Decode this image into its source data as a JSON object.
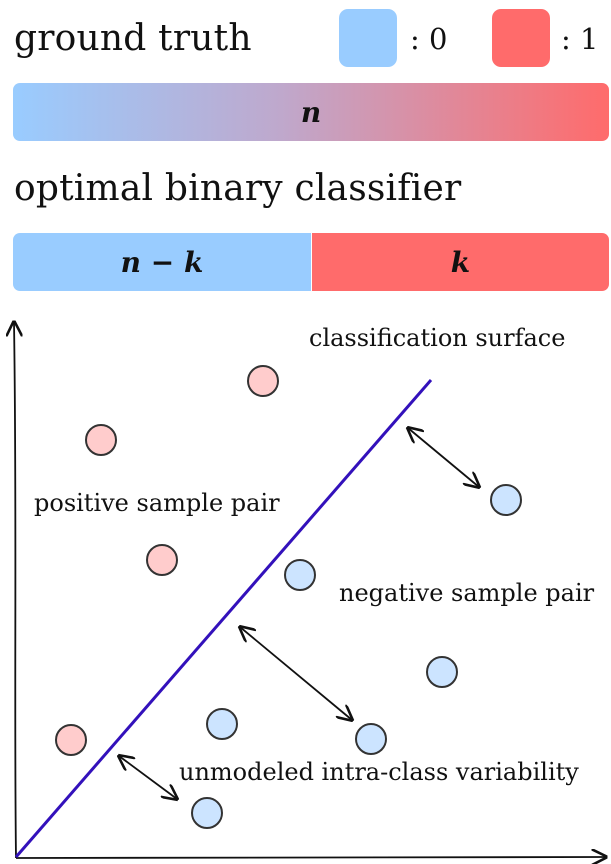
{
  "legend": {
    "title": "ground truth",
    "items": [
      {
        "label": ": 0",
        "color": "#99ccff"
      },
      {
        "label": ": 1",
        "color": "#ff6b6b"
      }
    ]
  },
  "ground_truth_bar": {
    "label": "n"
  },
  "classifier": {
    "title": "optimal binary classifier",
    "negative_label": "n − k",
    "positive_label": "k"
  },
  "plot": {
    "surface_label": "classification surface",
    "positive_pair_label": "positive sample pair",
    "negative_pair_label": "negative sample pair",
    "variability_label": "unmodeled intra-class variability",
    "colors": {
      "negative": "#99ccff",
      "positive": "#ff6b6b",
      "surface": "#3311bb"
    }
  }
}
